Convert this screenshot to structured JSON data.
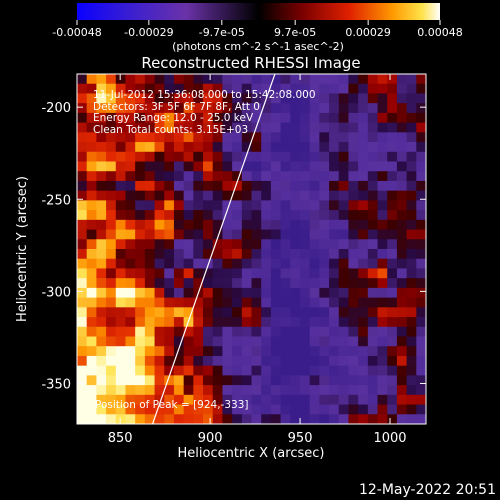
{
  "chart_data": {
    "type": "heatmap",
    "title": "Reconstructed RHESSI Image",
    "xlabel": "Heliocentric X (arcsec)",
    "ylabel": "Heliocentric Y (arcsec)",
    "xlim": [
      826,
      1020
    ],
    "ylim": [
      -372,
      -182
    ],
    "x_ticks": [
      850,
      900,
      950,
      1000
    ],
    "x_tick_labels": [
      "850",
      "900",
      "950",
      "1000"
    ],
    "y_ticks": [
      -200,
      -250,
      -300,
      -350
    ],
    "y_tick_labels": [
      "-200",
      "-250",
      "-300",
      "-350"
    ],
    "colorbar": {
      "range": [
        -0.00048,
        0.00048
      ],
      "ticks": [
        -0.00048,
        -0.00029,
        -9.7e-05,
        9.7e-05,
        0.00029,
        0.00048
      ],
      "tick_labels": [
        "-0.00048",
        "-0.00029",
        "-9.7e-05",
        "9.7e-05",
        "0.00029",
        "0.00048"
      ],
      "unit_label": "(photons cm^-2 s^-1 asec^-2)"
    },
    "annotations": [
      "11-Jul-2012 15:36:08.000 to 15:42:08.000",
      "Detectors: 3F 5F 6F 7F 8F, Att 0",
      "Energy Range: 12.0 - 25.0 keV",
      "Clean     Total counts: 3.15E+03",
      "Position of Peak = [924,-333]"
    ],
    "limb_line": [
      [
        868,
        -372
      ],
      [
        936,
        -182
      ]
    ],
    "grid": false
  },
  "footer_timestamp": "12-May-2022 20:51"
}
